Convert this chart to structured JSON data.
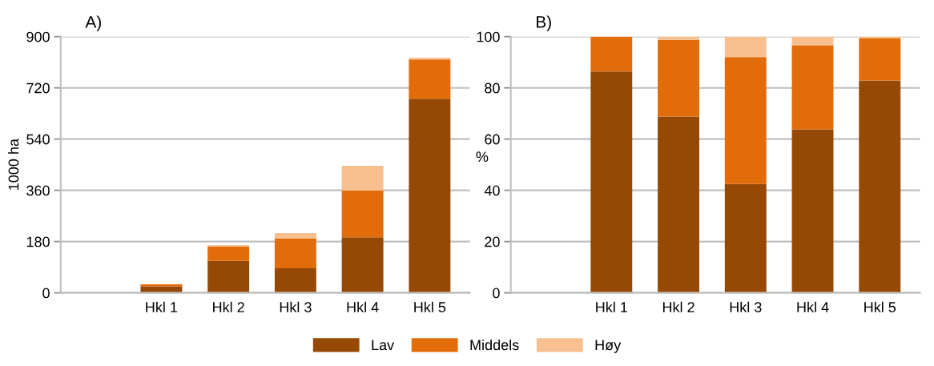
{
  "chart_data": [
    {
      "type": "bar",
      "title": "A)",
      "ylabel": "1000 ha",
      "stacked": true,
      "grid": "y",
      "legend": "bottom",
      "categories": [
        "Hkl 1",
        "Hkl 2",
        "Hkl 3",
        "Hkl 4",
        "Hkl 5"
      ],
      "ylim": [
        0,
        900
      ],
      "yticks": [
        0,
        180,
        360,
        540,
        720,
        900
      ],
      "series": [
        {
          "name": "Lav",
          "color": "#964805",
          "values": [
            23,
            112,
            86,
            195,
            682
          ]
        },
        {
          "name": "Middels",
          "color": "#e26b0a",
          "values": [
            7,
            51,
            104,
            164,
            138
          ]
        },
        {
          "name": "Høy",
          "color": "#f8c090",
          "values": [
            0,
            5,
            20,
            87,
            6
          ]
        }
      ]
    },
    {
      "type": "bar",
      "title": "B)",
      "ylabel": "%",
      "stacked": true,
      "grid": "y",
      "categories": [
        "Hkl 1",
        "Hkl 2",
        "Hkl 3",
        "Hkl 4",
        "Hkl 5"
      ],
      "ylim": [
        0,
        100
      ],
      "yticks": [
        0,
        20,
        40,
        60,
        80,
        100
      ],
      "series": [
        {
          "color": "#964805",
          "values": [
            86.4,
            68.8,
            42.5,
            63.8,
            82.9
          ]
        },
        {
          "color": "#e26b0a",
          "values": [
            13.6,
            29.9,
            49.5,
            32.8,
            16.5
          ]
        },
        {
          "color": "#f8c090",
          "values": [
            0,
            1.3,
            8.0,
            3.4,
            0.6
          ]
        }
      ]
    }
  ]
}
